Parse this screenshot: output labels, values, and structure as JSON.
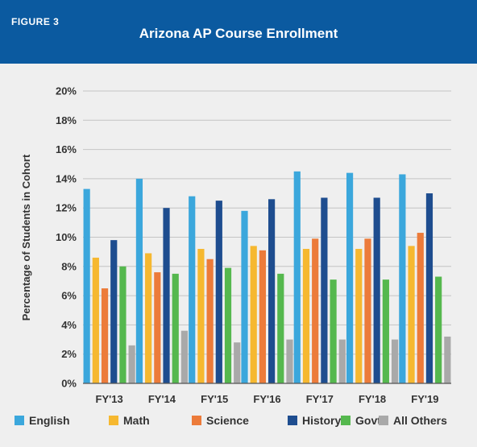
{
  "figure_label": "FIGURE 3",
  "chart_data": {
    "type": "bar",
    "title": "Arizona AP Course Enrollment",
    "xlabel": "",
    "ylabel": "Percentage of Students in Cohort",
    "ylim": [
      0,
      20
    ],
    "yticks": [
      0,
      2,
      4,
      6,
      8,
      10,
      12,
      14,
      16,
      18,
      20
    ],
    "ytick_labels": [
      "0%",
      "2%",
      "4%",
      "6%",
      "8%",
      "10%",
      "12%",
      "14%",
      "16%",
      "18%",
      "20%"
    ],
    "grid": true,
    "legend_position": "bottom",
    "categories": [
      "FY'13",
      "FY'14",
      "FY'15",
      "FY'16",
      "FY'17",
      "FY'18",
      "FY'19"
    ],
    "series": [
      {
        "name": "English",
        "color": "#3ba7dc",
        "values": [
          13.3,
          14.0,
          12.8,
          11.8,
          14.5,
          14.4,
          14.3
        ]
      },
      {
        "name": "Math",
        "color": "#f6b830",
        "values": [
          8.6,
          8.9,
          9.2,
          9.4,
          9.2,
          9.2,
          9.4
        ]
      },
      {
        "name": "Science",
        "color": "#ec7b3a",
        "values": [
          6.5,
          7.6,
          8.5,
          9.1,
          9.9,
          9.9,
          10.3
        ]
      },
      {
        "name": "History",
        "color": "#1e4d8f",
        "values": [
          9.8,
          12.0,
          12.5,
          12.6,
          12.7,
          12.7,
          13.0
        ]
      },
      {
        "name": "Govt",
        "color": "#55b84e",
        "values": [
          8.0,
          7.5,
          7.9,
          7.5,
          7.1,
          7.1,
          7.3
        ]
      },
      {
        "name": "All Others",
        "color": "#a9a9a9",
        "values": [
          2.6,
          3.6,
          2.8,
          3.0,
          3.0,
          3.0,
          3.2
        ]
      }
    ]
  }
}
